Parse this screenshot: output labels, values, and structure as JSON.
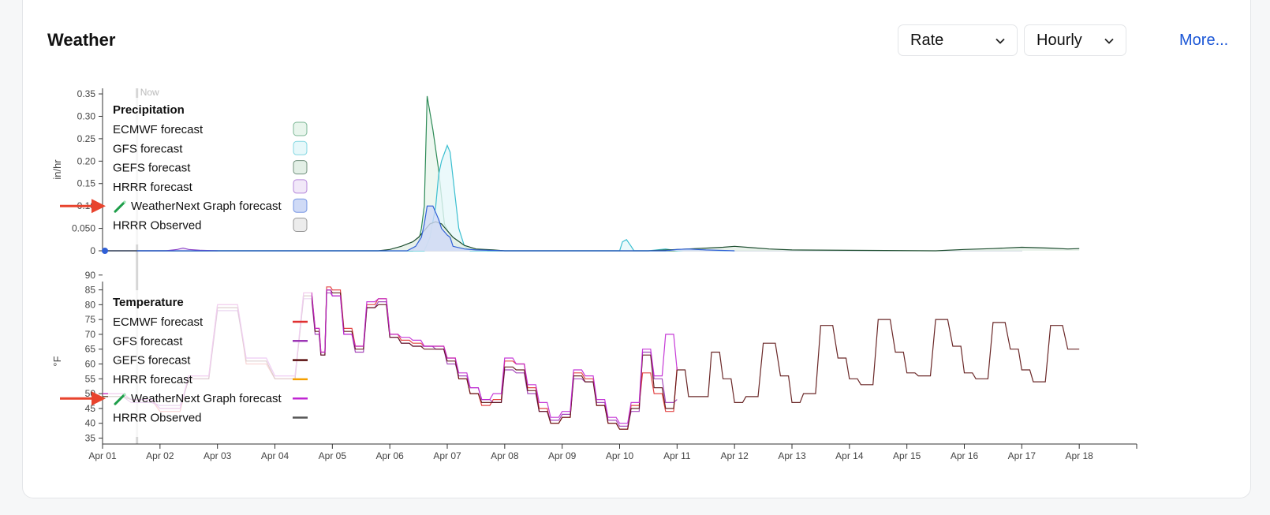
{
  "header": {
    "title": "Weather",
    "rate_select": "Rate",
    "interval_select": "Hourly",
    "more_link": "More..."
  },
  "chart_data": [
    {
      "type": "area",
      "title": "Precipitation",
      "ylabel": "in/hr",
      "now_label": "Now",
      "ylim": [
        0,
        0.38
      ],
      "y_ticks": [
        0,
        0.05,
        0.1,
        0.15,
        0.2,
        0.25,
        0.3,
        0.35
      ],
      "y_tick_labels": [
        "0",
        "0.050",
        "0.10",
        "0.15",
        "0.20",
        "0.25",
        "0.30",
        "0.35"
      ],
      "x_unit": "days since Apr 01",
      "x_ticks": [
        "Apr 01",
        "Apr 02",
        "Apr 03",
        "Apr 04",
        "Apr 05",
        "Apr 06",
        "Apr 07",
        "Apr 08",
        "Apr 09",
        "Apr 10",
        "Apr 11",
        "Apr 12",
        "Apr 13",
        "Apr 14",
        "Apr 15",
        "Apr 16",
        "Apr 17",
        "Apr 18"
      ],
      "xlim": [
        0,
        18
      ],
      "now_x": 0.6,
      "series": [
        {
          "name": "ECMWF forecast",
          "color": "#2e8b57",
          "fill": "#e8f5ec",
          "x": [
            0,
            5.4,
            5.5,
            5.55,
            5.6,
            5.65,
            5.75,
            5.85,
            5.95,
            6.1,
            6.2,
            6.3,
            6.6,
            6.7,
            10
          ],
          "y": [
            0,
            0,
            0.02,
            0.05,
            0.1,
            0.345,
            0.27,
            0.18,
            0.06,
            0.02,
            0.01,
            0.005,
            0.002,
            0,
            0
          ]
        },
        {
          "name": "GFS forecast",
          "color": "#3bbfd0",
          "fill": "#e6f8fa",
          "x": [
            0,
            5.6,
            5.7,
            5.8,
            5.85,
            5.9,
            6.0,
            6.05,
            6.2,
            6.3,
            6.4,
            9.0,
            9.05,
            9.12,
            9.2,
            9.25,
            9.5,
            9.8,
            10,
            10.2,
            11
          ],
          "y": [
            0,
            0,
            0.03,
            0.1,
            0.17,
            0.2,
            0.235,
            0.22,
            0.05,
            0.01,
            0,
            0,
            0.02,
            0.025,
            0.01,
            0,
            0,
            0.004,
            0,
            0.002,
            0
          ]
        },
        {
          "name": "GEFS forecast",
          "color": "#1d4d2f",
          "fill": "#e3efe6",
          "x": [
            0,
            4.8,
            5.0,
            5.2,
            5.4,
            5.5,
            5.6,
            5.7,
            5.8,
            5.9,
            6.0,
            6.1,
            6.3,
            6.5,
            6.8,
            7.0,
            9.5,
            10.0,
            10.5,
            10.8,
            11.0,
            11.3,
            11.6,
            12.0,
            13,
            14.5,
            15.0,
            15.5,
            16.0,
            16.5,
            16.8,
            17.0
          ],
          "y": [
            0,
            0,
            0.003,
            0.01,
            0.02,
            0.03,
            0.045,
            0.06,
            0.065,
            0.06,
            0.045,
            0.03,
            0.012,
            0.004,
            0.002,
            0,
            0,
            0.003,
            0.006,
            0.008,
            0.01,
            0.007,
            0.004,
            0.002,
            0.001,
            0,
            0.003,
            0.005,
            0.008,
            0.006,
            0.004,
            0.005
          ]
        },
        {
          "name": "HRRR forecast",
          "color": "#8a3fc7",
          "fill": "#f1e8f8",
          "x": [
            0,
            1.1,
            1.3,
            1.4,
            1.5,
            1.7,
            2.0
          ],
          "y": [
            0,
            0,
            0.003,
            0.006,
            0.003,
            0.001,
            0
          ]
        },
        {
          "name": "WeatherNext Graph forecast",
          "color": "#2f5fd6",
          "fill": "#cfdaf6",
          "x": [
            0,
            5.3,
            5.45,
            5.55,
            5.6,
            5.65,
            5.75,
            5.85,
            5.9,
            6.0,
            6.05,
            6.1,
            6.3,
            6.5,
            7.0,
            9.8,
            10.0,
            10.2,
            10.5,
            11
          ],
          "y": [
            0,
            0,
            0.01,
            0.03,
            0.06,
            0.1,
            0.1,
            0.07,
            0.05,
            0.035,
            0.03,
            0.01,
            0.004,
            0.002,
            0,
            0,
            0.003,
            0.004,
            0.002,
            0
          ]
        },
        {
          "name": "HRRR Observed",
          "color": "#5a5a5a",
          "fill": "#ececec",
          "x": [
            0,
            0.6
          ],
          "y": [
            0,
            0
          ]
        }
      ]
    },
    {
      "type": "line",
      "title": "Temperature",
      "ylabel": "°F",
      "ylim": [
        33,
        91
      ],
      "y_ticks": [
        35,
        40,
        45,
        50,
        55,
        60,
        65,
        70,
        75,
        80,
        85,
        90
      ],
      "x_unit": "days since Apr 01",
      "xlim": [
        0,
        18
      ],
      "series": [
        {
          "name": "ECMWF forecast",
          "color": "#e03131",
          "x": [
            0,
            0.5,
            1.0,
            1.5,
            2.0,
            2.5,
            3.0,
            3.5,
            3.7,
            3.8,
            3.9,
            4.0,
            4.2,
            4.4,
            4.6,
            4.8,
            5.0,
            5.2,
            5.4,
            5.6,
            5.8,
            6.0,
            6.2,
            6.4,
            6.6,
            6.8,
            7.0,
            7.2,
            7.4,
            7.6,
            7.8,
            8.0,
            8.2,
            8.4,
            8.6,
            8.8,
            9.0,
            9.2,
            9.4,
            9.6,
            9.8,
            10.0
          ],
          "y": [
            50,
            48,
            44,
            56,
            80,
            60,
            55,
            84,
            72,
            64,
            86,
            85,
            72,
            66,
            80,
            82,
            70,
            68,
            67,
            66,
            66,
            62,
            55,
            50,
            46,
            48,
            61,
            60,
            52,
            45,
            40,
            42,
            57,
            55,
            46,
            40,
            38,
            46,
            57,
            50,
            44,
            59
          ]
        },
        {
          "name": "GFS forecast",
          "color": "#9c36b5",
          "x": [
            0,
            0.5,
            1.0,
            1.5,
            2.0,
            2.5,
            3.0,
            3.5,
            3.7,
            3.8,
            3.9,
            4.0,
            4.2,
            4.4,
            4.6,
            4.8,
            5.0,
            5.2,
            5.4,
            5.6,
            5.8,
            6.0,
            6.2,
            6.4,
            6.6,
            6.8,
            7.0,
            7.2,
            7.4,
            7.6,
            7.8,
            8.0,
            8.2,
            8.4,
            8.6,
            8.8,
            9.0,
            9.2,
            9.4,
            9.6,
            9.8,
            10.0
          ],
          "y": [
            49,
            47,
            46,
            55,
            78,
            62,
            56,
            82,
            70,
            63,
            84,
            83,
            70,
            64,
            79,
            81,
            69,
            67,
            66,
            66,
            65,
            60,
            56,
            52,
            48,
            47,
            58,
            57,
            50,
            44,
            41,
            43,
            55,
            54,
            47,
            41,
            39,
            44,
            64,
            55,
            47,
            48
          ]
        },
        {
          "name": "GEFS forecast",
          "color": "#5a0f0f",
          "x": [
            0,
            0.5,
            1.0,
            1.5,
            2.0,
            2.5,
            3.0,
            3.5,
            3.7,
            3.8,
            3.9,
            4.0,
            4.2,
            4.4,
            4.6,
            4.8,
            5.0,
            5.2,
            5.4,
            5.6,
            5.8,
            6.0,
            6.2,
            6.4,
            6.6,
            6.8,
            7.0,
            7.2,
            7.4,
            7.6,
            7.8,
            8.0,
            8.2,
            8.4,
            8.6,
            8.8,
            9.0,
            9.2,
            9.4,
            9.6,
            9.8,
            10.0,
            10.2,
            10.4,
            10.6,
            10.8,
            11.0,
            11.2,
            11.5,
            11.8,
            12.0,
            12.2,
            12.5,
            12.8,
            13.0,
            13.2,
            13.5,
            13.8,
            14.0,
            14.2,
            14.5,
            14.8,
            15.0,
            15.2,
            15.5,
            15.8,
            16.0,
            16.2,
            16.5,
            16.8,
            17.0
          ],
          "y": [
            49,
            48,
            45,
            55,
            79,
            61,
            55,
            83,
            71,
            63,
            85,
            84,
            71,
            65,
            79,
            80,
            69,
            67,
            66,
            65,
            65,
            61,
            55,
            50,
            47,
            47,
            59,
            58,
            51,
            44,
            40,
            42,
            56,
            54,
            46,
            40,
            38,
            45,
            63,
            52,
            45,
            58,
            49,
            49,
            64,
            55,
            47,
            49,
            67,
            56,
            47,
            50,
            73,
            62,
            55,
            53,
            75,
            64,
            57,
            56,
            75,
            66,
            57,
            55,
            74,
            65,
            58,
            54,
            73,
            65,
            65
          ]
        },
        {
          "name": "HRRR forecast",
          "color": "#f59f00",
          "x": [
            0,
            0.5
          ],
          "y": [
            49,
            48
          ]
        },
        {
          "name": "WeatherNext Graph forecast",
          "color": "#c026d3",
          "x": [
            0,
            0.5,
            1.0,
            1.5,
            2.0,
            2.5,
            3.0,
            3.5,
            3.7,
            3.8,
            3.9,
            4.0,
            4.2,
            4.4,
            4.6,
            4.8,
            5.0,
            5.2,
            5.4,
            5.6,
            5.8,
            6.0,
            6.2,
            6.4,
            6.6,
            6.8,
            7.0,
            7.2,
            7.4,
            7.6,
            7.8,
            8.0,
            8.2,
            8.4,
            8.6,
            8.8,
            9.0,
            9.2,
            9.4,
            9.6,
            9.8,
            10.0
          ],
          "y": [
            50,
            48,
            45,
            56,
            80,
            62,
            56,
            84,
            72,
            64,
            85,
            83,
            70,
            66,
            81,
            82,
            70,
            69,
            68,
            66,
            66,
            62,
            57,
            52,
            48,
            50,
            62,
            60,
            53,
            47,
            42,
            44,
            58,
            56,
            48,
            42,
            40,
            47,
            65,
            56,
            70,
            58
          ]
        },
        {
          "name": "HRRR Observed",
          "color": "#555555",
          "x": [
            0,
            0.5
          ],
          "y": [
            49,
            48
          ]
        }
      ]
    }
  ]
}
